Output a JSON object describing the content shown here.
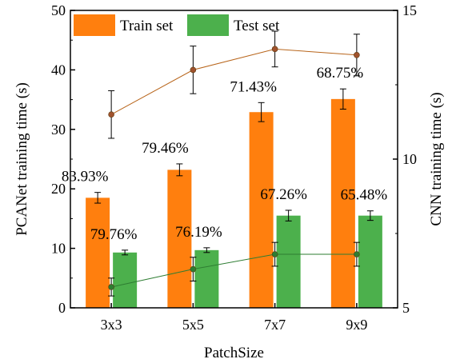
{
  "chart_data": {
    "type": "bar",
    "xlabel": "PatchSize",
    "ylabel": "PCANet training time (s)",
    "y2label": "CNN training time (s)",
    "categories": [
      "3x3",
      "5x5",
      "7x7",
      "9x9"
    ],
    "ylim": [
      0,
      50
    ],
    "yticks": [
      0,
      10,
      20,
      30,
      40,
      50
    ],
    "y2lim": [
      5,
      15
    ],
    "y2ticks": [
      5,
      10,
      15
    ],
    "legend_position": "top-left",
    "series": [
      {
        "name": "Train set",
        "color": "#FF7F0E",
        "axis": "left",
        "values": [
          18.5,
          23.2,
          32.9,
          35.1
        ],
        "errors": [
          0.9,
          1.0,
          1.6,
          1.7
        ],
        "labels": [
          "83.93%",
          "79.46%",
          "71.43%",
          "68.75%"
        ]
      },
      {
        "name": "Test set",
        "color": "#4CB04C",
        "axis": "left",
        "values": [
          9.3,
          9.7,
          15.5,
          15.5
        ],
        "errors": [
          0.4,
          0.4,
          0.9,
          0.8
        ],
        "labels": [
          "79.76%",
          "76.19%",
          "67.26%",
          "65.48%"
        ]
      }
    ],
    "lines": [
      {
        "color": "#B8651B",
        "marker_color": "#A0522D",
        "axis": "right",
        "values": [
          11.5,
          13.0,
          13.7,
          13.5
        ],
        "errors": [
          0.8,
          0.8,
          0.6,
          0.7
        ]
      },
      {
        "color": "#2E7D32",
        "marker_color": "#2E7D32",
        "axis": "right",
        "values": [
          5.7,
          6.3,
          6.8,
          6.8
        ],
        "errors": [
          0.3,
          0.4,
          0.4,
          0.4
        ]
      }
    ]
  }
}
